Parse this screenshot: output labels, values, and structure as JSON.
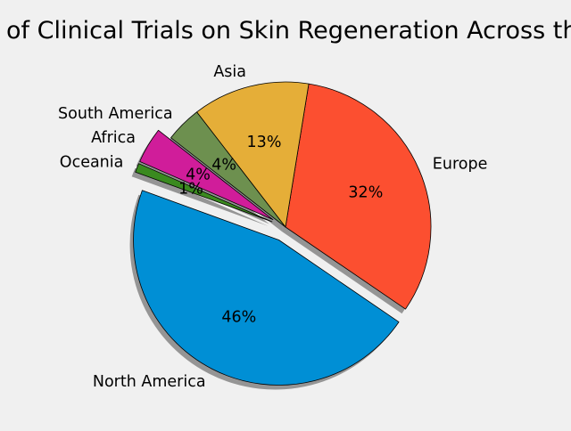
{
  "chart_data": {
    "type": "pie",
    "title": "Number of Clinical Trials on Skin Regeneration Across the World",
    "categories": [
      "North America",
      "Europe",
      "Asia",
      "South America",
      "Africa",
      "Oceania"
    ],
    "values": [
      46,
      32,
      13,
      4,
      4,
      1
    ],
    "percent_labels": [
      "46%",
      "32%",
      "13%",
      "4%",
      "4%",
      "1%"
    ],
    "colors": [
      "#008fd5",
      "#fc4f30",
      "#e5ae38",
      "#6d904f",
      "#d01d9a",
      "#3a8a1f"
    ],
    "exploded": [
      true,
      false,
      false,
      false,
      true,
      true
    ],
    "start_angle_deg": 160,
    "counterclockwise": true,
    "shadow": true,
    "legend": "none"
  }
}
